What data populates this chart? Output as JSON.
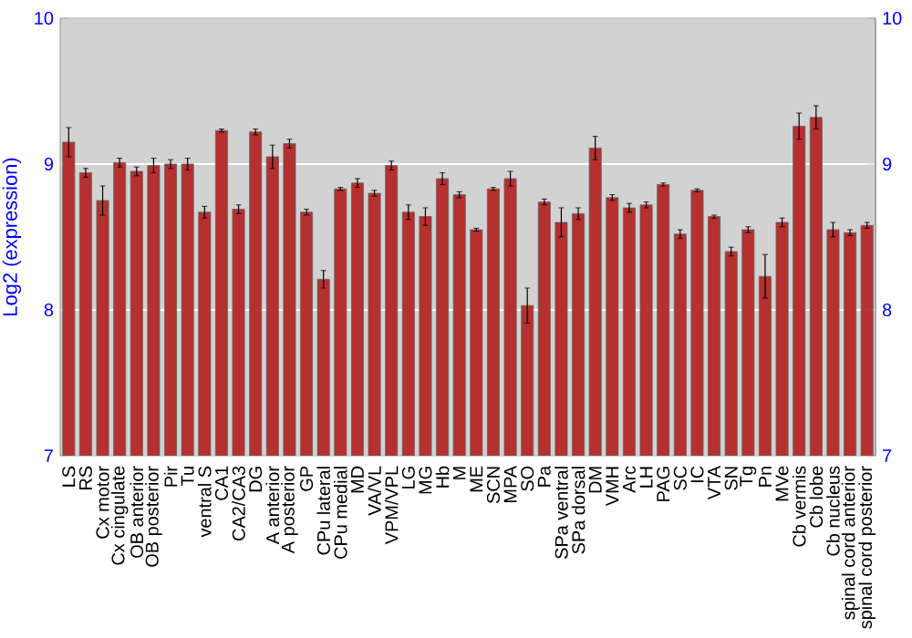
{
  "chart_data": {
    "type": "bar",
    "ylabel": "Log2 (expression)",
    "categories": [
      "LS",
      "RS",
      "Cx motor",
      "Cx cingulate",
      "OB anterior",
      "OB posterior",
      "Pir",
      "Tu",
      "ventral S",
      "CA1",
      "CA2/CA3",
      "DG",
      "A anterior",
      "A posterior",
      "GP",
      "CPu lateral",
      "CPu medial",
      "MD",
      "VA/VL",
      "VPM/VPL",
      "LG",
      "MG",
      "Hb",
      "M",
      "ME",
      "SCN",
      "MPA",
      "SO",
      "Pa",
      "SPa ventral",
      "SPa dorsal",
      "DM",
      "VMH",
      "Arc",
      "LH",
      "PAG",
      "SC",
      "IC",
      "VTA",
      "SN",
      "Tg",
      "Pn",
      "MVe",
      "Cb vermis",
      "Cb lobe",
      "Cb nucleus",
      "spinal cord anterior",
      "spinal cord posterior"
    ],
    "values": [
      9.15,
      8.94,
      8.75,
      9.01,
      8.95,
      8.99,
      9.0,
      9.0,
      8.67,
      9.23,
      8.69,
      9.22,
      9.05,
      9.14,
      8.67,
      8.21,
      8.83,
      8.87,
      8.8,
      8.99,
      8.67,
      8.64,
      8.9,
      8.79,
      8.55,
      8.83,
      8.9,
      8.03,
      8.74,
      8.6,
      8.66,
      9.11,
      8.77,
      8.7,
      8.72,
      8.86,
      8.52,
      8.82,
      8.64,
      8.4,
      8.55,
      8.23,
      8.6,
      9.26,
      9.32,
      8.55,
      8.53,
      8.58
    ],
    "errors": [
      0.1,
      0.03,
      0.1,
      0.03,
      0.03,
      0.05,
      0.03,
      0.04,
      0.04,
      0.01,
      0.03,
      0.02,
      0.08,
      0.03,
      0.02,
      0.06,
      0.01,
      0.03,
      0.02,
      0.03,
      0.05,
      0.06,
      0.04,
      0.02,
      0.01,
      0.01,
      0.05,
      0.12,
      0.02,
      0.1,
      0.04,
      0.08,
      0.02,
      0.03,
      0.02,
      0.01,
      0.03,
      0.01,
      0.01,
      0.03,
      0.02,
      0.15,
      0.03,
      0.09,
      0.08,
      0.05,
      0.02,
      0.02
    ],
    "color": "#b5302f",
    "ylim": [
      7,
      10
    ],
    "yticks": [
      7,
      8,
      9,
      10
    ],
    "y2lim": [
      7,
      10
    ],
    "y2ticks": [
      7,
      8,
      9,
      10
    ],
    "grid": "y"
  }
}
